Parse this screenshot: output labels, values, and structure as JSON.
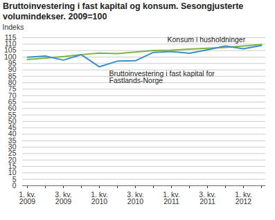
{
  "chart_data": {
    "type": "line",
    "title": "Bruttoinvestering i fast kapital og konsum. Sesongjusterte volumindekser. 2009=100",
    "y_label": "Indeks",
    "categories": [
      "1. kv.\n2009",
      null,
      "3. kv.\n2009",
      null,
      "1. kv.\n2010",
      null,
      "3. kv.\n2010",
      null,
      "1. kv.\n2011",
      null,
      "3. kv.\n2011",
      null,
      "1. kv.\n2012",
      null
    ],
    "series": [
      {
        "name": "Konsum i husholdninger",
        "color": "#7cb342",
        "values": [
          98.1,
          99.1,
          100.4,
          101.9,
          103.0,
          102.7,
          103.9,
          105.1,
          105.3,
          106.1,
          106.8,
          107.5,
          108.6,
          109.7
        ]
      },
      {
        "name": "Bruttoinvestering i fast kapital for\nFastlands-Norge",
        "color": "#3a8fc7",
        "values": [
          99.8,
          100.8,
          97.6,
          101.8,
          92.4,
          96.8,
          97.1,
          103.6,
          104.3,
          102.9,
          105.6,
          108.5,
          106.4,
          109.0
        ]
      }
    ],
    "ylim": [
      0,
      115
    ],
    "yticks": [
      0,
      5,
      10,
      15,
      20,
      25,
      30,
      35,
      40,
      45,
      50,
      55,
      60,
      65,
      70,
      75,
      80,
      85,
      90,
      95,
      100,
      105,
      110,
      115
    ],
    "grid": true
  }
}
